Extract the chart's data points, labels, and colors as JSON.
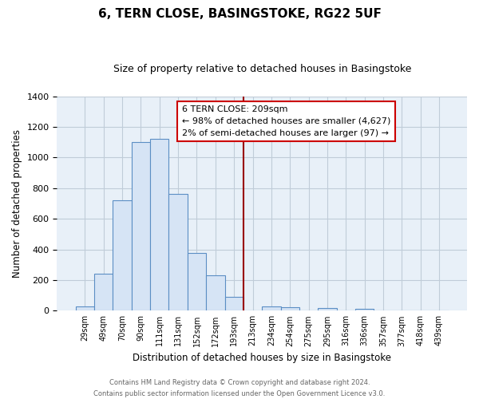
{
  "title": "6, TERN CLOSE, BASINGSTOKE, RG22 5UF",
  "subtitle": "Size of property relative to detached houses in Basingstoke",
  "xlabel": "Distribution of detached houses by size in Basingstoke",
  "ylabel": "Number of detached properties",
  "footer_line1": "Contains HM Land Registry data © Crown copyright and database right 2024.",
  "footer_line2": "Contains public sector information licensed under the Open Government Licence v3.0.",
  "bar_labels": [
    "29sqm",
    "49sqm",
    "70sqm",
    "90sqm",
    "111sqm",
    "131sqm",
    "152sqm",
    "172sqm",
    "193sqm",
    "213sqm",
    "234sqm",
    "254sqm",
    "275sqm",
    "295sqm",
    "316sqm",
    "336sqm",
    "357sqm",
    "377sqm",
    "418sqm",
    "439sqm"
  ],
  "bar_values": [
    30,
    240,
    720,
    1100,
    1120,
    760,
    375,
    230,
    90,
    0,
    30,
    20,
    0,
    15,
    0,
    10,
    0,
    0,
    0,
    0
  ],
  "bar_color": "#d6e4f5",
  "bar_edge_color": "#5b8ec4",
  "vline_x_index": 9,
  "vline_color": "#990000",
  "annotation_title": "6 TERN CLOSE: 209sqm",
  "annotation_line1": "← 98% of detached houses are smaller (4,627)",
  "annotation_line2": "2% of semi-detached houses are larger (97) →",
  "annotation_box_facecolor": "#ffffff",
  "annotation_box_edgecolor": "#cc0000",
  "ylim": [
    0,
    1400
  ],
  "yticks": [
    0,
    200,
    400,
    600,
    800,
    1000,
    1200,
    1400
  ],
  "plot_bg_color": "#e8f0f8",
  "fig_bg_color": "#ffffff",
  "grid_color": "#c0ccd8",
  "title_fontsize": 11,
  "subtitle_fontsize": 9
}
